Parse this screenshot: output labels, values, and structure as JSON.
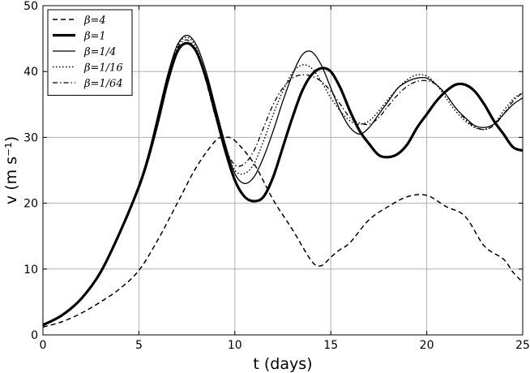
{
  "chart_data": {
    "type": "line",
    "title": "",
    "xlabel": "t (days)",
    "ylabel": "v (m s⁻¹)",
    "xlim": [
      0,
      25
    ],
    "ylim": [
      0,
      50
    ],
    "xticks": [
      0,
      5,
      10,
      15,
      20,
      25
    ],
    "yticks": [
      0,
      10,
      20,
      30,
      40,
      50
    ],
    "grid": true,
    "legend_position": "top-left",
    "series": [
      {
        "name": "β=4",
        "style": "dashed",
        "color": "#000000",
        "x": [
          0,
          1,
          2,
          3,
          4,
          5,
          6,
          7,
          8,
          9,
          9.5,
          10,
          11,
          12,
          13,
          14,
          14.5,
          15,
          15.5,
          16,
          17,
          18,
          19,
          20,
          21,
          22,
          23,
          24,
          24.5,
          25
        ],
        "y": [
          1.2,
          2.0,
          3.3,
          5.0,
          7.0,
          9.8,
          14.5,
          20.0,
          25.5,
          29.5,
          30.0,
          29.5,
          26.0,
          20.5,
          16.0,
          11.2,
          10.5,
          11.8,
          13.0,
          14.0,
          17.5,
          19.5,
          21.0,
          21.2,
          19.5,
          18.0,
          13.5,
          11.5,
          9.5,
          8.0
        ]
      },
      {
        "name": "β=1",
        "style": "solid-thick",
        "color": "#000000",
        "x": [
          0,
          1,
          2,
          3,
          4,
          5,
          5.5,
          6,
          6.5,
          7,
          7.5,
          8,
          8.5,
          9,
          9.5,
          10,
          10.5,
          11,
          11.5,
          12,
          12.5,
          13,
          13.5,
          14,
          14.5,
          15,
          15.5,
          16,
          16.5,
          17,
          17.5,
          18,
          18.5,
          19,
          19.5,
          20,
          20.5,
          21,
          21.5,
          22,
          22.5,
          23,
          23.5,
          24,
          24.5,
          25
        ],
        "y": [
          1.5,
          3.0,
          5.5,
          9.5,
          15.5,
          22.5,
          27.0,
          32.5,
          38.5,
          43.0,
          44.3,
          43.0,
          39.0,
          33.5,
          28.0,
          23.5,
          21.0,
          20.3,
          21.0,
          24.0,
          28.5,
          33.0,
          37.0,
          39.5,
          40.5,
          40.0,
          37.5,
          34.0,
          31.0,
          29.0,
          27.3,
          27.0,
          27.5,
          29.0,
          31.5,
          33.5,
          35.5,
          37.0,
          38.0,
          38.0,
          37.0,
          35.0,
          32.5,
          30.5,
          28.5,
          28.0
        ]
      },
      {
        "name": "β=1/4",
        "style": "solid",
        "color": "#000000",
        "x": [
          0,
          1,
          2,
          3,
          4,
          5,
          5.5,
          6,
          6.5,
          7,
          7.5,
          8,
          8.5,
          9,
          9.5,
          10,
          10.5,
          11,
          11.5,
          12,
          12.5,
          13,
          13.5,
          14,
          14.5,
          15,
          15.5,
          16,
          16.5,
          17,
          17.5,
          18,
          18.5,
          19,
          19.5,
          20,
          20.5,
          21,
          21.5,
          22,
          22.5,
          23,
          23.5,
          24,
          24.5,
          25
        ],
        "y": [
          1.5,
          3.0,
          5.5,
          9.5,
          15.5,
          22.8,
          27.5,
          33.5,
          39.5,
          44.0,
          45.5,
          44.0,
          40.0,
          34.5,
          29.0,
          24.5,
          23.0,
          24.0,
          27.0,
          31.0,
          35.5,
          39.5,
          42.5,
          43.0,
          41.0,
          37.5,
          34.0,
          31.5,
          30.5,
          31.5,
          33.5,
          35.5,
          37.5,
          38.5,
          39.0,
          39.0,
          38.0,
          36.5,
          34.5,
          33.0,
          31.8,
          31.5,
          32.0,
          33.5,
          35.0,
          36.0
        ]
      },
      {
        "name": "β=1/16",
        "style": "dotted",
        "color": "#000000",
        "x": [
          0,
          1,
          2,
          3,
          4,
          5,
          5.5,
          6,
          6.5,
          7,
          7.5,
          8,
          8.5,
          9,
          9.5,
          10,
          10.5,
          11,
          11.5,
          12,
          12.5,
          13,
          13.5,
          14,
          14.5,
          15,
          15.5,
          16,
          16.5,
          17,
          17.5,
          18,
          18.5,
          19,
          19.5,
          20,
          20.5,
          21,
          21.5,
          22,
          22.5,
          23,
          23.5,
          24,
          24.5,
          25
        ],
        "y": [
          1.5,
          3.0,
          5.5,
          9.5,
          15.5,
          22.8,
          27.5,
          33.3,
          39.3,
          43.8,
          45.2,
          43.5,
          39.0,
          33.5,
          28.5,
          25.0,
          24.5,
          26.0,
          29.5,
          33.5,
          37.0,
          39.8,
          41.0,
          40.5,
          38.5,
          36.0,
          34.0,
          32.5,
          32.0,
          32.5,
          34.0,
          35.8,
          37.5,
          38.8,
          39.5,
          39.3,
          38.0,
          36.0,
          34.0,
          32.5,
          31.5,
          31.2,
          32.0,
          34.0,
          35.8,
          36.8
        ]
      },
      {
        "name": "β=1/64",
        "style": "dashdot",
        "color": "#000000",
        "x": [
          0,
          1,
          2,
          3,
          4,
          5,
          5.5,
          6,
          6.5,
          7,
          7.5,
          8,
          8.5,
          9,
          9.5,
          10,
          10.5,
          11,
          11.5,
          12,
          12.5,
          13,
          13.5,
          14,
          14.5,
          15,
          15.5,
          16,
          16.5,
          17,
          17.5,
          18,
          18.5,
          19,
          19.5,
          20,
          20.5,
          21,
          21.5,
          22,
          22.5,
          23,
          23.5,
          24,
          24.5,
          25
        ],
        "y": [
          1.5,
          3.0,
          5.5,
          9.5,
          15.5,
          22.8,
          27.5,
          33.3,
          39.2,
          43.5,
          44.8,
          43.0,
          38.5,
          33.0,
          28.5,
          25.8,
          26.0,
          28.0,
          31.5,
          35.0,
          37.5,
          39.0,
          39.5,
          39.3,
          38.5,
          37.0,
          35.0,
          33.0,
          32.2,
          32.0,
          33.0,
          34.8,
          36.5,
          37.8,
          38.5,
          38.6,
          38.0,
          36.5,
          34.5,
          32.8,
          31.6,
          31.2,
          31.8,
          33.5,
          35.5,
          36.8
        ]
      }
    ]
  }
}
